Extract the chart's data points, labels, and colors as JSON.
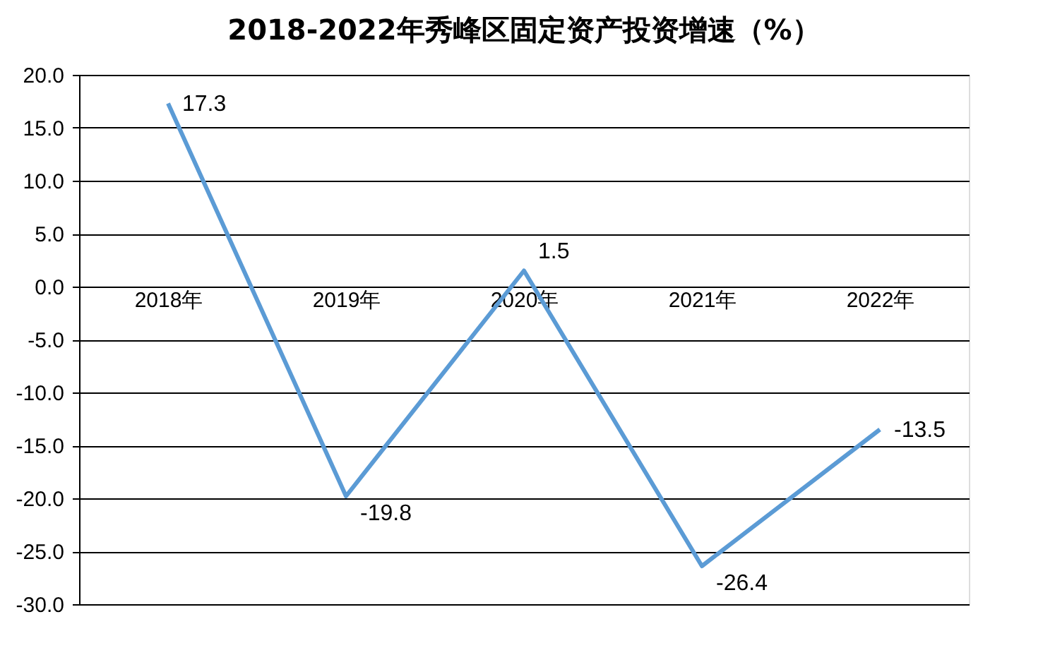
{
  "chart_data": {
    "type": "line",
    "title": "2018-2022年秀峰区固定资产投资增速（%）",
    "categories": [
      "2018年",
      "2019年",
      "2020年",
      "2021年",
      "2022年"
    ],
    "series": [
      {
        "color": "#5b9bd5",
        "values": [
          17.3,
          -19.8,
          1.5,
          -26.4,
          -13.5
        ]
      }
    ],
    "ylim": [
      -30,
      20
    ],
    "yticks": [
      {
        "value": -30,
        "label": "-30.0"
      },
      {
        "value": -25,
        "label": "-25.0"
      },
      {
        "value": -20,
        "label": "-20.0"
      },
      {
        "value": -15,
        "label": "-15.0"
      },
      {
        "value": -10,
        "label": "-10.0"
      },
      {
        "value": -5,
        "label": "-5.0"
      },
      {
        "value": 0,
        "label": "0.0"
      },
      {
        "value": 5,
        "label": "5.0"
      },
      {
        "value": 10,
        "label": "10.0"
      },
      {
        "value": 15,
        "label": "15.0"
      },
      {
        "value": 20,
        "label": "20.0"
      }
    ],
    "grid": "y",
    "data_labels": true,
    "marker": "none",
    "line_style": "solid"
  }
}
